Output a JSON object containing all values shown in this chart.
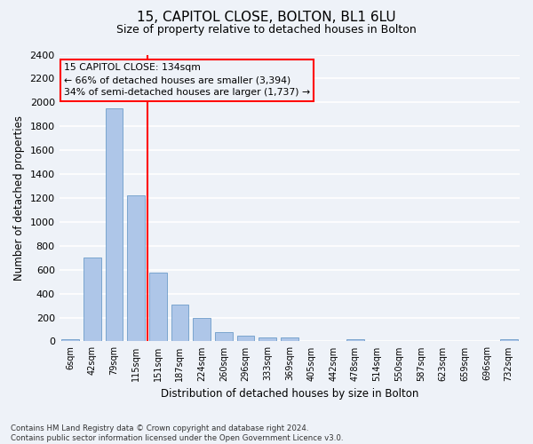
{
  "title_line1": "15, CAPITOL CLOSE, BOLTON, BL1 6LU",
  "title_line2": "Size of property relative to detached houses in Bolton",
  "xlabel": "Distribution of detached houses by size in Bolton",
  "ylabel": "Number of detached properties",
  "bar_labels": [
    "6sqm",
    "42sqm",
    "79sqm",
    "115sqm",
    "151sqm",
    "187sqm",
    "224sqm",
    "260sqm",
    "296sqm",
    "333sqm",
    "369sqm",
    "405sqm",
    "442sqm",
    "478sqm",
    "514sqm",
    "550sqm",
    "587sqm",
    "623sqm",
    "659sqm",
    "696sqm",
    "732sqm"
  ],
  "bar_values": [
    15,
    700,
    1950,
    1220,
    575,
    305,
    200,
    80,
    45,
    35,
    35,
    0,
    0,
    20,
    0,
    0,
    0,
    0,
    0,
    0,
    15
  ],
  "bar_color": "#aec6e8",
  "bar_edge_color": "#5a8fc2",
  "annotation_line1": "15 CAPITOL CLOSE: 134sqm",
  "annotation_line2": "← 66% of detached houses are smaller (3,394)",
  "annotation_line3": "34% of semi-detached houses are larger (1,737) →",
  "ylim": [
    0,
    2400
  ],
  "yticks": [
    0,
    200,
    400,
    600,
    800,
    1000,
    1200,
    1400,
    1600,
    1800,
    2000,
    2200,
    2400
  ],
  "footnote": "Contains HM Land Registry data © Crown copyright and database right 2024.\nContains public sector information licensed under the Open Government Licence v3.0.",
  "background_color": "#eef2f8",
  "grid_color": "#ffffff",
  "vline_index": 3.53
}
